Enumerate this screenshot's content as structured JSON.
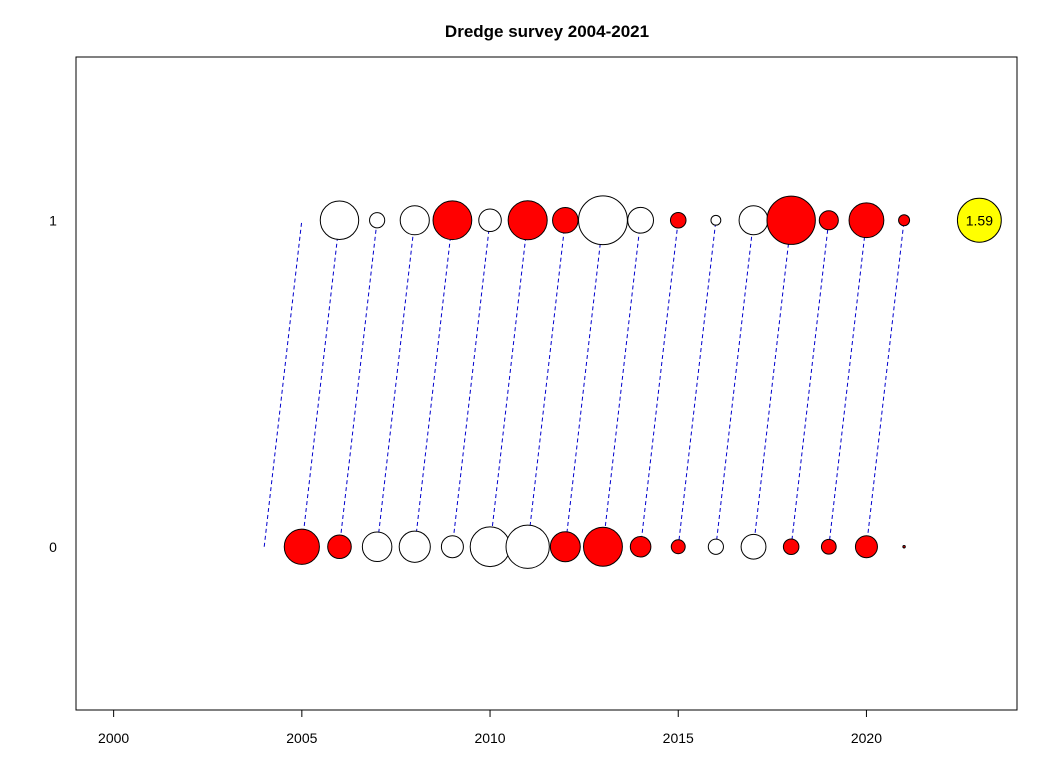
{
  "chart_data": {
    "type": "scatter",
    "subtype": "bubble",
    "title": "Dredge survey 2004-2021",
    "xlabel": "",
    "ylabel": "",
    "xlim": [
      1999,
      2024
    ],
    "ylim": [
      -0.5,
      1.5
    ],
    "x_ticks": [
      "2000",
      "2005",
      "2010",
      "2015",
      "2020"
    ],
    "y_ticks": [
      "0",
      "1"
    ],
    "grid": false,
    "legend": "none",
    "colors": {
      "positive_fill": "#ff0000",
      "negative_fill": "#ffffff",
      "reference_fill": "#ffff00",
      "link_line": "#0000cc",
      "outline": "#000000"
    },
    "bubbles": [
      {
        "x": 2005,
        "y": 0,
        "value": 1.02,
        "sign": "positive"
      },
      {
        "x": 2006,
        "y": 0,
        "value": 0.46,
        "sign": "positive"
      },
      {
        "x": 2007,
        "y": 0,
        "value": 0.72,
        "sign": "negative"
      },
      {
        "x": 2008,
        "y": 0,
        "value": 0.8,
        "sign": "negative"
      },
      {
        "x": 2009,
        "y": 0,
        "value": 0.4,
        "sign": "negative"
      },
      {
        "x": 2010,
        "y": 0,
        "value": 1.3,
        "sign": "negative"
      },
      {
        "x": 2011,
        "y": 0,
        "value": 1.55,
        "sign": "negative"
      },
      {
        "x": 2012,
        "y": 0,
        "value": 0.74,
        "sign": "positive"
      },
      {
        "x": 2013,
        "y": 0,
        "value": 1.25,
        "sign": "positive"
      },
      {
        "x": 2014,
        "y": 0,
        "value": 0.35,
        "sign": "positive"
      },
      {
        "x": 2015,
        "y": 0,
        "value": 0.16,
        "sign": "positive"
      },
      {
        "x": 2016,
        "y": 0,
        "value": 0.19,
        "sign": "negative"
      },
      {
        "x": 2017,
        "y": 0,
        "value": 0.51,
        "sign": "negative"
      },
      {
        "x": 2018,
        "y": 0,
        "value": 0.2,
        "sign": "positive"
      },
      {
        "x": 2019,
        "y": 0,
        "value": 0.18,
        "sign": "positive"
      },
      {
        "x": 2020,
        "y": 0,
        "value": 0.4,
        "sign": "positive"
      },
      {
        "x": 2021,
        "y": 0,
        "value": 0.003,
        "sign": "positive"
      },
      {
        "x": 2006,
        "y": 1,
        "value": 1.22,
        "sign": "negative"
      },
      {
        "x": 2007,
        "y": 1,
        "value": 0.19,
        "sign": "negative"
      },
      {
        "x": 2008,
        "y": 1,
        "value": 0.7,
        "sign": "negative"
      },
      {
        "x": 2009,
        "y": 1,
        "value": 1.24,
        "sign": "positive"
      },
      {
        "x": 2010,
        "y": 1,
        "value": 0.42,
        "sign": "negative"
      },
      {
        "x": 2011,
        "y": 1,
        "value": 1.26,
        "sign": "positive"
      },
      {
        "x": 2012,
        "y": 1,
        "value": 0.54,
        "sign": "positive"
      },
      {
        "x": 2013,
        "y": 1,
        "value": 1.97,
        "sign": "negative"
      },
      {
        "x": 2014,
        "y": 1,
        "value": 0.55,
        "sign": "negative"
      },
      {
        "x": 2015,
        "y": 1,
        "value": 0.2,
        "sign": "positive"
      },
      {
        "x": 2016,
        "y": 1,
        "value": 0.08,
        "sign": "negative"
      },
      {
        "x": 2017,
        "y": 1,
        "value": 0.69,
        "sign": "negative"
      },
      {
        "x": 2018,
        "y": 1,
        "value": 1.93,
        "sign": "positive"
      },
      {
        "x": 2019,
        "y": 1,
        "value": 0.3,
        "sign": "positive"
      },
      {
        "x": 2020,
        "y": 1,
        "value": 1.0,
        "sign": "positive"
      },
      {
        "x": 2021,
        "y": 1,
        "value": 0.1,
        "sign": "positive"
      }
    ],
    "links": [
      {
        "x0": 2004,
        "y0": 0,
        "x1": 2005,
        "y1": 1
      },
      {
        "x0": 2005,
        "y0": 0,
        "x1": 2006,
        "y1": 1
      },
      {
        "x0": 2006,
        "y0": 0,
        "x1": 2007,
        "y1": 1
      },
      {
        "x0": 2007,
        "y0": 0,
        "x1": 2008,
        "y1": 1
      },
      {
        "x0": 2008,
        "y0": 0,
        "x1": 2009,
        "y1": 1
      },
      {
        "x0": 2009,
        "y0": 0,
        "x1": 2010,
        "y1": 1
      },
      {
        "x0": 2010,
        "y0": 0,
        "x1": 2011,
        "y1": 1
      },
      {
        "x0": 2011,
        "y0": 0,
        "x1": 2012,
        "y1": 1
      },
      {
        "x0": 2012,
        "y0": 0,
        "x1": 2013,
        "y1": 1
      },
      {
        "x0": 2013,
        "y0": 0,
        "x1": 2014,
        "y1": 1
      },
      {
        "x0": 2014,
        "y0": 0,
        "x1": 2015,
        "y1": 1
      },
      {
        "x0": 2015,
        "y0": 0,
        "x1": 2016,
        "y1": 1
      },
      {
        "x0": 2016,
        "y0": 0,
        "x1": 2017,
        "y1": 1
      },
      {
        "x0": 2017,
        "y0": 0,
        "x1": 2018,
        "y1": 1
      },
      {
        "x0": 2018,
        "y0": 0,
        "x1": 2019,
        "y1": 1
      },
      {
        "x0": 2019,
        "y0": 0,
        "x1": 2020,
        "y1": 1
      },
      {
        "x0": 2020,
        "y0": 0,
        "x1": 2021,
        "y1": 1
      }
    ],
    "reference": {
      "x": 2023,
      "y": 1,
      "value": 1.59,
      "label": "1.59"
    }
  }
}
